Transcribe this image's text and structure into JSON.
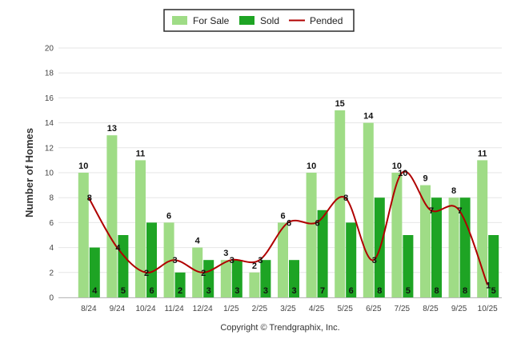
{
  "chart_data": {
    "type": "bar",
    "categories": [
      "8/24",
      "9/24",
      "10/24",
      "11/24",
      "12/24",
      "1/25",
      "2/25",
      "3/25",
      "4/25",
      "5/25",
      "6/25",
      "7/25",
      "8/25",
      "9/25",
      "10/25"
    ],
    "series": [
      {
        "name": "For Sale",
        "type": "bar",
        "color": "#9fdc86",
        "values": [
          10,
          13,
          11,
          6,
          4,
          3,
          2,
          6,
          10,
          15,
          14,
          10,
          9,
          8,
          11
        ]
      },
      {
        "name": "Sold",
        "type": "bar",
        "color": "#1ea424",
        "values": [
          4,
          5,
          6,
          2,
          3,
          3,
          3,
          3,
          7,
          6,
          8,
          5,
          8,
          8,
          5
        ]
      },
      {
        "name": "Pended",
        "type": "line",
        "color": "#b00000",
        "values": [
          8,
          4,
          2,
          3,
          2,
          3,
          3,
          6,
          6,
          8,
          3,
          10,
          7,
          7,
          1
        ]
      }
    ],
    "ylabel": "Number of Homes",
    "xlabel": "",
    "ylim": [
      0,
      20
    ],
    "yticks": [
      0,
      2,
      4,
      6,
      8,
      10,
      12,
      14,
      16,
      18,
      20
    ],
    "grid": true,
    "legend_position": "top-center"
  },
  "footer": {
    "copyright": "Copyright © Trendgraphix, Inc."
  }
}
